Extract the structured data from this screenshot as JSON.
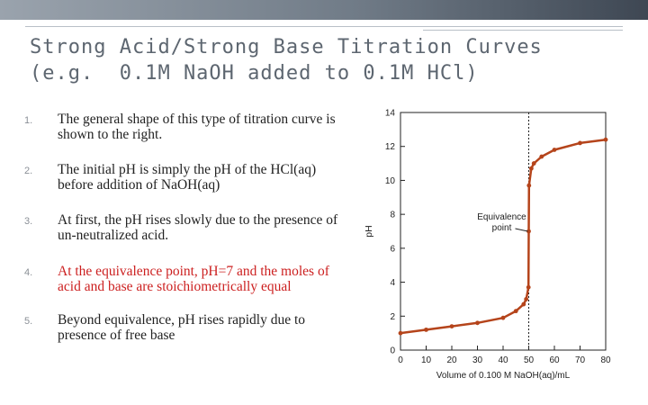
{
  "slide": {
    "title_line1": "Strong Acid/Strong Base Titration Curves",
    "title_line2": "(e.g.  0.1M NaOH added to 0.1M HCl)",
    "points": [
      {
        "num": "1.",
        "text": "The general shape of this type of titration curve is shown to the right.",
        "emphasis": false
      },
      {
        "num": "2.",
        "text": "The initial pH is simply the pH of the HCl(aq) before addition of NaOH(aq)",
        "emphasis": false
      },
      {
        "num": "3.",
        "text": "At first, the pH rises slowly due to the presence of un-neutralized acid.",
        "emphasis": false
      },
      {
        "num": "4.",
        "text": "At the equivalence point, pH=7 and the moles of acid and base are stoichiometrically equal",
        "emphasis": true
      },
      {
        "num": "5.",
        "text": "Beyond equivalence, pH rises rapidly due to presence of free base",
        "emphasis": false
      }
    ]
  },
  "chart_data": {
    "type": "line",
    "title": "",
    "xlabel": "Volume of 0.100 M NaOH(aq)/mL",
    "ylabel": "pH",
    "xlim": [
      0,
      80
    ],
    "ylim": [
      0,
      14
    ],
    "xticks": [
      "0",
      "10",
      "20",
      "30",
      "40",
      "50",
      "60",
      "70",
      "80"
    ],
    "yticks": [
      "0",
      "2",
      "4",
      "6",
      "8",
      "10",
      "12",
      "14"
    ],
    "grid": false,
    "series": [
      {
        "color": "#b5441b",
        "x": [
          0,
          10,
          20,
          30,
          40,
          45,
          48,
          49,
          49.9,
          50,
          50.1,
          51,
          52,
          55,
          60,
          70,
          80
        ],
        "y": [
          1.0,
          1.2,
          1.4,
          1.6,
          1.9,
          2.3,
          2.7,
          3.0,
          3.7,
          7.0,
          9.7,
          10.7,
          11.0,
          11.4,
          11.8,
          12.2,
          12.4
        ]
      }
    ],
    "equivalence_line": {
      "x": 50
    },
    "annotation": {
      "line1": "Equivalence",
      "line2": "point",
      "x": 50,
      "y": 7
    }
  }
}
